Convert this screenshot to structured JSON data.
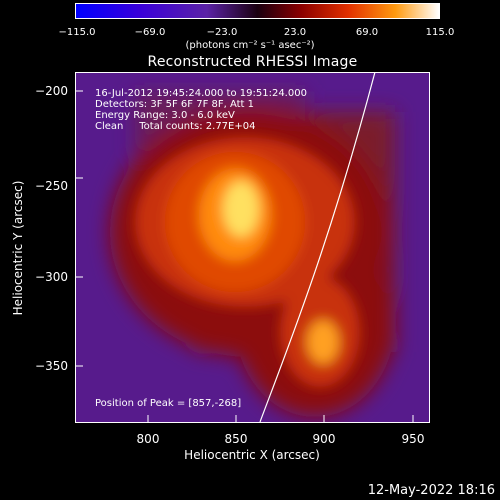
{
  "colorbar": {
    "tick_labels": [
      "−115.0",
      "−69.0",
      "−23.0",
      "23.0",
      "69.0",
      "115.0"
    ],
    "range": [
      -115.0,
      115.0
    ],
    "units_label": "(photons cm⁻² s⁻¹ asec⁻²)"
  },
  "plot": {
    "title": "Reconstructed RHESSI Image",
    "xlabel": "Heliocentric X (arcsec)",
    "ylabel": "Heliocentric Y (arcsec)",
    "xticks": [
      "800",
      "850",
      "900",
      "950"
    ],
    "yticks": [
      "−200",
      "−250",
      "−300",
      "−350"
    ],
    "xlim": [
      760,
      955
    ],
    "ylim": [
      -385,
      -190
    ],
    "annotation_lines": [
      "16-Jul-2012 19:45:24.000 to 19:51:24.000",
      "Detectors: 3F 5F 6F 7F 8F, Att 1",
      "Energy Range: 3.0 - 6.0 keV",
      "Clean     Total counts: 2.77E+04"
    ],
    "peak_text": "Position of Peak = [857,-268]",
    "peak": [
      857,
      -268
    ]
  },
  "timestamp": "12-May-2022 18:16"
}
